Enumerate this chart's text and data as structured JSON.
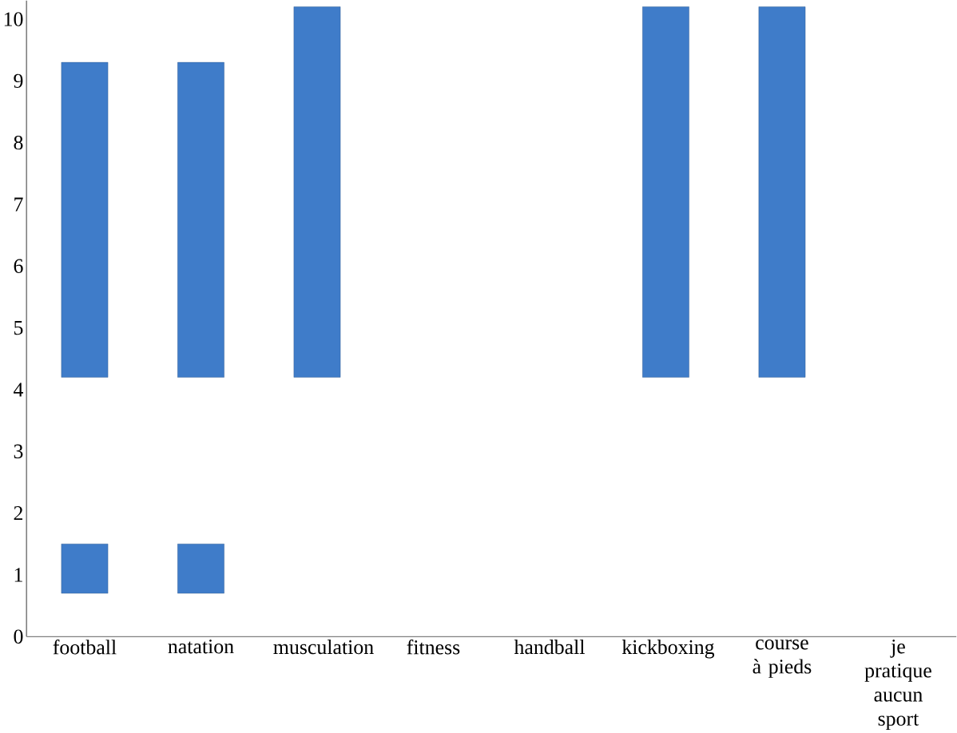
{
  "chart_data": {
    "type": "bar",
    "categories": [
      "football",
      "natation",
      "musculation",
      "fitness",
      "handball",
      "kickboxing",
      "course à pieds",
      "je pratique aucun sport"
    ],
    "series": [
      {
        "color": "#3f7cc9",
        "base": [
          4.2,
          4.2,
          4.2,
          null,
          null,
          4.2,
          4.2,
          null
        ],
        "values": [
          5.1,
          5.1,
          6.0,
          null,
          null,
          6.0,
          6.0,
          null
        ]
      },
      {
        "color": "#3f7cc9",
        "base": [
          0.7,
          0.7,
          null,
          null,
          null,
          null,
          null,
          null
        ],
        "values": [
          0.8,
          0.8,
          null,
          null,
          null,
          null,
          null,
          null
        ]
      }
    ],
    "ylim": [
      0,
      10.3
    ],
    "yticks": [
      0,
      1,
      2,
      3,
      4,
      5,
      6,
      7,
      8,
      9,
      10
    ],
    "grid": false
  }
}
